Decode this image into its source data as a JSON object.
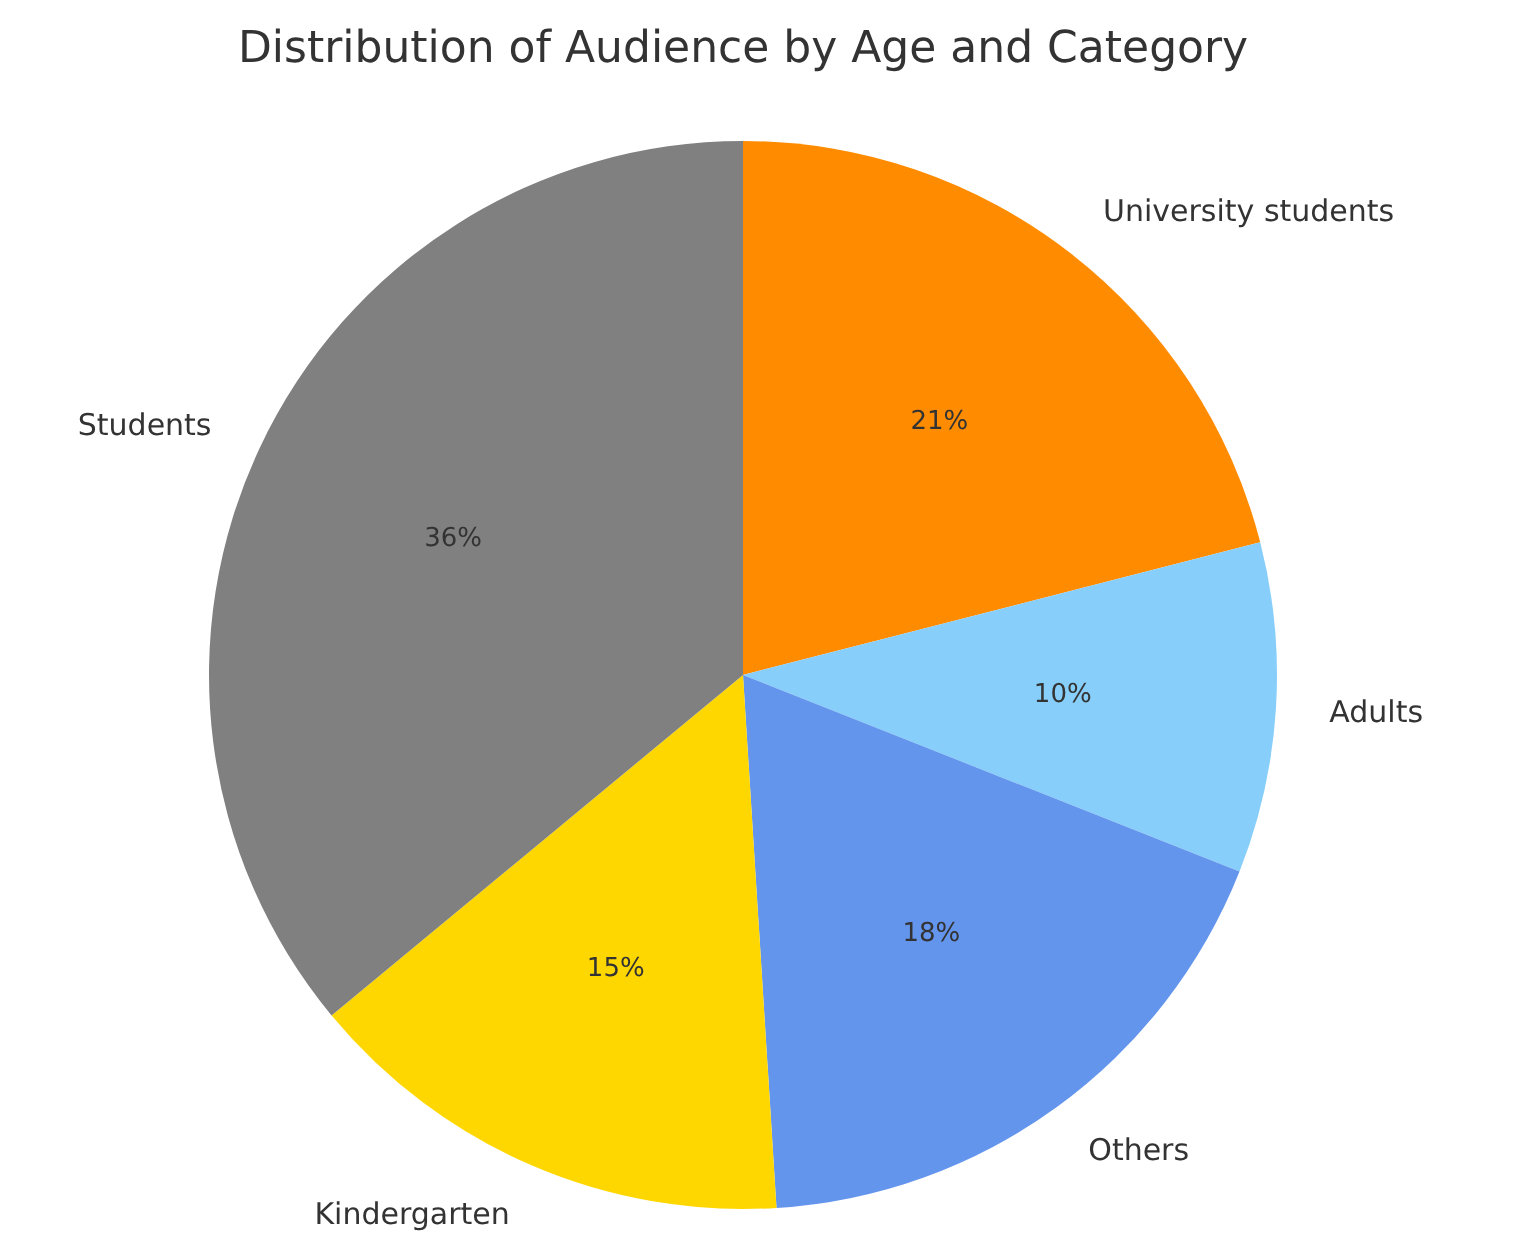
{
  "chart_data": {
    "type": "pie",
    "title": "Distribution of Audience by Age and Category",
    "categories": [
      "University students",
      "Adults",
      "Others",
      "Kindergarten",
      "Students"
    ],
    "values": [
      21,
      10,
      18,
      15,
      36
    ],
    "colors": [
      "#ff8c00",
      "#87cefa",
      "#6495ed",
      "#ffd700",
      "#808080"
    ],
    "value_labels": [
      "21%",
      "10%",
      "18%",
      "15%",
      "36%"
    ]
  }
}
